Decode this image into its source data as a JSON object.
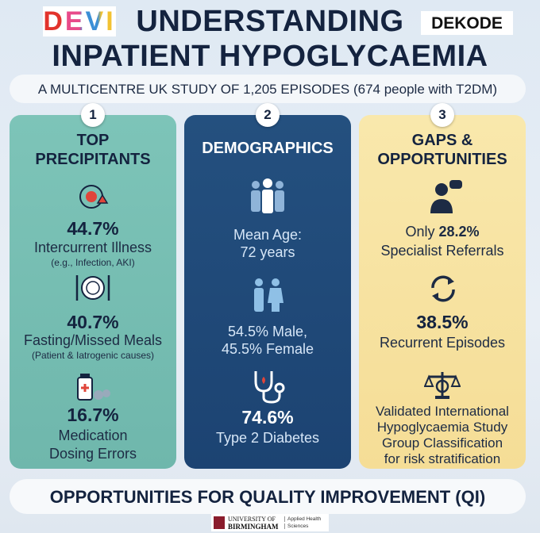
{
  "header": {
    "logo_left": "DEVI",
    "logo_right": "DEKODE",
    "title_line1": "UNDERSTANDING",
    "title_line2": "INPATIENT HYPOGLYCAEMIA",
    "subtitle": "A MULTICENTRE UK STUDY OF 1,205 EPISODES (674 people with T2DM)"
  },
  "columns": [
    {
      "number": "1",
      "title_lines": [
        "TOP",
        "PRECIPITANTS"
      ],
      "items": [
        {
          "value": "44.7%",
          "label_lines": [
            "Intercurrent Illness"
          ],
          "note": "(e.g., Infection, AKI)"
        },
        {
          "value": "40.7%",
          "label_lines": [
            "Fasting/Missed Meals"
          ],
          "note": "(Patient & Iatrogenic causes)"
        },
        {
          "value": "16.7%",
          "label_lines": [
            "Medication",
            "Dosing Errors"
          ]
        }
      ]
    },
    {
      "number": "2",
      "title_lines": [
        "DEMOGRAPHICS"
      ],
      "items": [
        {
          "label_lines": [
            "Mean Age:",
            "72 years"
          ]
        },
        {
          "label_lines": [
            "54.5% Male,",
            "45.5% Female"
          ]
        },
        {
          "value": "74.6%",
          "label_lines": [
            "Type 2 Diabetes"
          ]
        }
      ]
    },
    {
      "number": "3",
      "title_lines": [
        "GAPS &",
        "OPPORTUNITIES"
      ],
      "items": [
        {
          "prefix": "Only",
          "value": "28.2%",
          "label_lines": [
            "Specialist Referrals"
          ]
        },
        {
          "value": "38.5%",
          "label_lines": [
            "Recurrent Episodes"
          ]
        },
        {
          "label_lines": [
            "Validated International",
            "Hypoglycaemia Study",
            "Group Classification",
            "for risk stratification"
          ]
        }
      ]
    }
  ],
  "footer": {
    "banner": "OPPORTUNITIES FOR QUALITY IMPROVEMENT (QI)",
    "university_line1": "UNIVERSITY OF",
    "university_line2": "BIRMINGHAM",
    "department_line1": "Applied Health",
    "department_line2": "Sciences"
  }
}
